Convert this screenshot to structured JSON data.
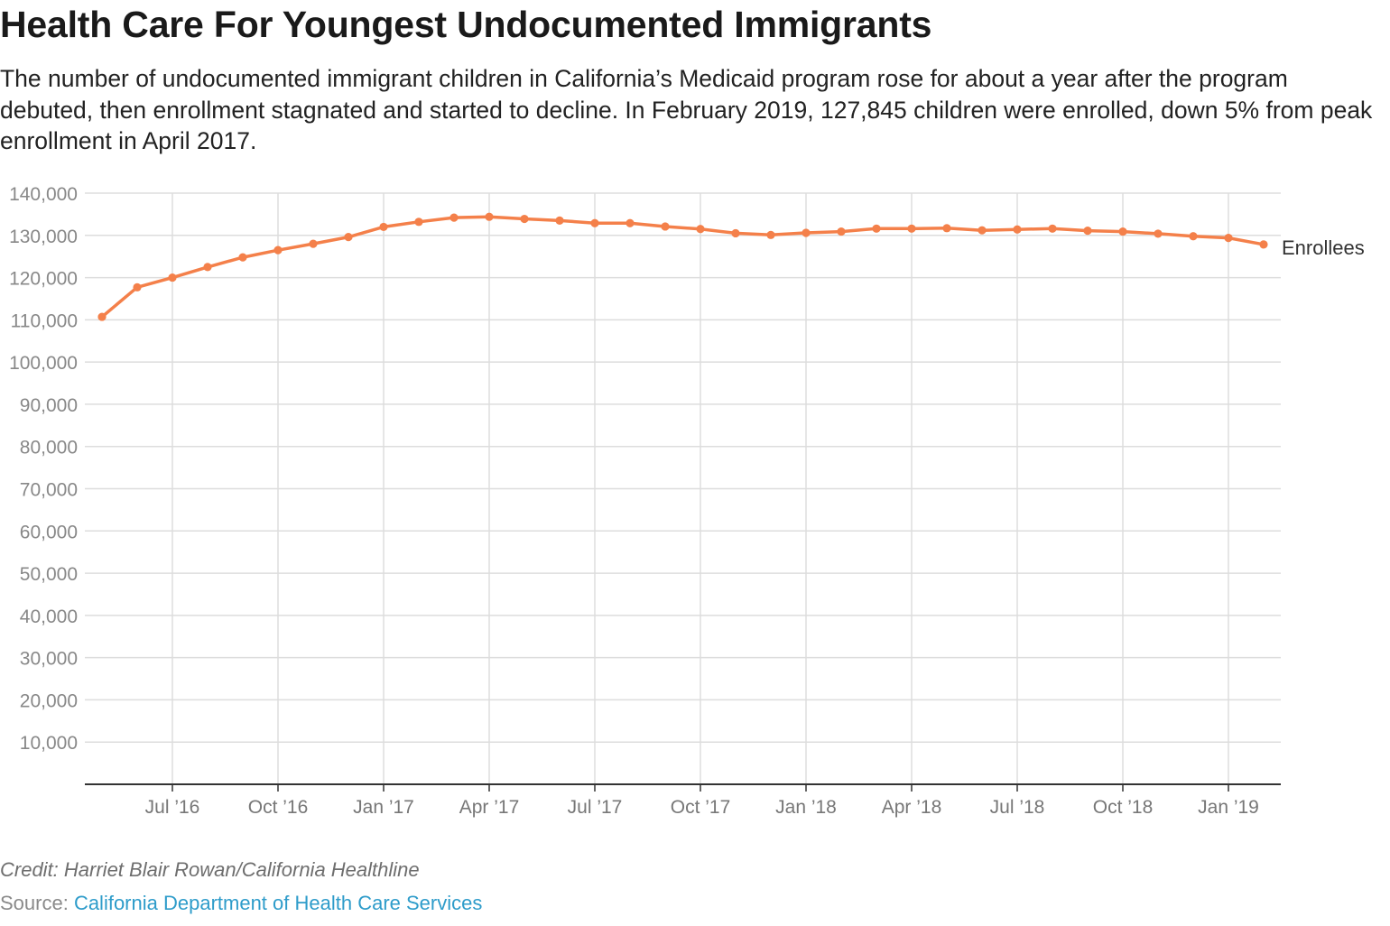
{
  "header": {
    "title": "Health Care For Youngest Undocumented Immigrants",
    "subtitle": "The number of undocumented immigrant children in California’s Medicaid program rose for about a year after the program debuted, then enrollment stagnated and started to decline. In February 2019, 127,845 children were enrolled, down 5% from peak enrollment in April 2017."
  },
  "footer": {
    "credit": "Credit: Harriet Blair Rowan/California Healthline",
    "source_prefix": "Source: ",
    "source_link": "California Department of Health Care Services"
  },
  "colors": {
    "line": "#f4804a",
    "grid": "#dddddd",
    "axis": "#333333",
    "tick_label": "#888888"
  },
  "chart_data": {
    "type": "line",
    "title": "Health Care For Youngest Undocumented Immigrants",
    "xlabel": "",
    "ylabel": "",
    "ylim": [
      0,
      140000
    ],
    "grid": true,
    "legend": "inline-right",
    "x_ticks": [
      "Jul ’16",
      "Oct ’16",
      "Jan ’17",
      "Apr ’17",
      "Jul ’17",
      "Oct ’17",
      "Jan ’18",
      "Apr ’18",
      "Jul ’18",
      "Oct ’18",
      "Jan ’19"
    ],
    "y_ticks": [
      "10,000",
      "20,000",
      "30,000",
      "40,000",
      "50,000",
      "60,000",
      "70,000",
      "80,000",
      "90,000",
      "100,000",
      "110,000",
      "120,000",
      "130,000",
      "140,000"
    ],
    "x": [
      "May 2016",
      "Jun 2016",
      "Jul 2016",
      "Aug 2016",
      "Sep 2016",
      "Oct 2016",
      "Nov 2016",
      "Dec 2016",
      "Jan 2017",
      "Feb 2017",
      "Mar 2017",
      "Apr 2017",
      "May 2017",
      "Jun 2017",
      "Jul 2017",
      "Aug 2017",
      "Sep 2017",
      "Oct 2017",
      "Nov 2017",
      "Dec 2017",
      "Jan 2018",
      "Feb 2018",
      "Mar 2018",
      "Apr 2018",
      "May 2018",
      "Jun 2018",
      "Jul 2018",
      "Aug 2018",
      "Sep 2018",
      "Oct 2018",
      "Nov 2018",
      "Dec 2018",
      "Jan 2019",
      "Feb 2019"
    ],
    "series": [
      {
        "name": "Enrollees",
        "values": [
          110700,
          117700,
          120000,
          122500,
          124800,
          126500,
          128000,
          129600,
          132000,
          133200,
          134200,
          134400,
          133900,
          133500,
          132900,
          132900,
          132100,
          131500,
          130500,
          130100,
          130600,
          130900,
          131600,
          131600,
          131700,
          131200,
          131400,
          131600,
          131100,
          130900,
          130400,
          129800,
          129400,
          127845
        ]
      }
    ]
  }
}
